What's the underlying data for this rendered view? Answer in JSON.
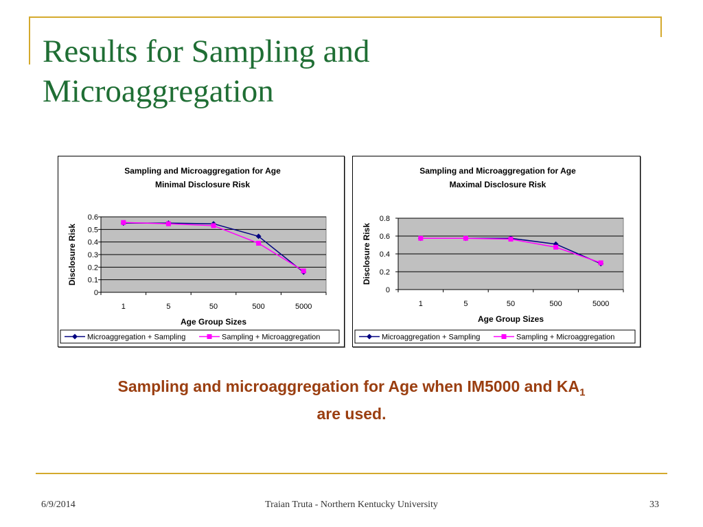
{
  "slide": {
    "title_line1": "Results for Sampling and",
    "title_line2": "Microaggregation",
    "caption_main": "Sampling and microaggregation for Age when IM5000 and KA",
    "caption_sub": "1",
    "caption_end": "are used.",
    "footer_date": "6/9/2014",
    "footer_center": "Traian Truta - Northern Kentucky University",
    "footer_page": "33"
  },
  "colors": {
    "title": "#1f6e34",
    "caption": "#9a3e10",
    "accent": "#d4a92c",
    "plot_bg": "#c0c0c0",
    "series1": "#000080",
    "series2": "#ff00ff"
  },
  "chart_data": [
    {
      "type": "line",
      "title": "Sampling and Microaggregation for Age",
      "subtitle": "Minimal Disclosure Risk",
      "xlabel": "Age Group Sizes",
      "ylabel": "Disclosure Risk",
      "categories": [
        "1",
        "5",
        "50",
        "500",
        "5000"
      ],
      "ylim": [
        0,
        0.6
      ],
      "yticks": [
        0,
        0.1,
        0.2,
        0.3,
        0.4,
        0.5,
        0.6
      ],
      "ytick_labels": [
        "0",
        "0.1",
        "0.2",
        "0.3",
        "0.4",
        "0.5",
        "0.6"
      ],
      "grid": true,
      "legend_position": "bottom",
      "series": [
        {
          "name": "Microaggregation + Sampling",
          "marker": "diamond",
          "values": [
            0.55,
            0.55,
            0.545,
            0.445,
            0.16
          ]
        },
        {
          "name": "Sampling + Microaggregation",
          "marker": "square",
          "values": [
            0.555,
            0.545,
            0.53,
            0.39,
            0.17
          ]
        }
      ]
    },
    {
      "type": "line",
      "title": "Sampling and Microaggregation for Age",
      "subtitle": "Maximal Disclosure Risk",
      "xlabel": "Age Group Sizes",
      "ylabel": "Disclosure Risk",
      "categories": [
        "1",
        "5",
        "50",
        "500",
        "5000"
      ],
      "ylim": [
        0,
        0.8
      ],
      "yticks": [
        0,
        0.2,
        0.4,
        0.6,
        0.8
      ],
      "ytick_labels": [
        "0",
        "0.2",
        "0.4",
        "0.6",
        "0.8"
      ],
      "grid": true,
      "legend_position": "bottom",
      "series": [
        {
          "name": "Microaggregation + Sampling",
          "marker": "diamond",
          "values": [
            0.575,
            0.575,
            0.575,
            0.51,
            0.29
          ]
        },
        {
          "name": "Sampling + Microaggregation",
          "marker": "square",
          "values": [
            0.575,
            0.575,
            0.565,
            0.475,
            0.3
          ]
        }
      ]
    }
  ]
}
